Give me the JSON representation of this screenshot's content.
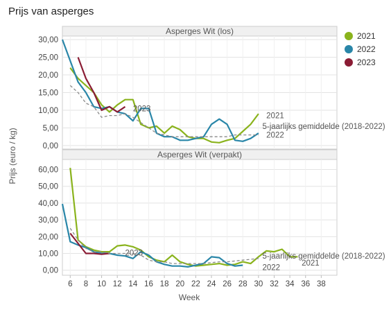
{
  "title": "Prijs van asperges",
  "legend": [
    {
      "name": "2021",
      "color": "#8ab31c"
    },
    {
      "name": "2022",
      "color": "#2986a8"
    },
    {
      "name": "2023",
      "color": "#8a1c34"
    }
  ],
  "chart_data": {
    "type": "line",
    "xlabel": "Week",
    "ylabel": "Prijs (euro / kg)",
    "x_ticks": [
      "6",
      "8",
      "10",
      "12",
      "14",
      "16",
      "18",
      "20",
      "22",
      "24",
      "26",
      "28",
      "30",
      "32",
      "34",
      "36",
      "38"
    ],
    "xlim": [
      5,
      40
    ],
    "panels": [
      {
        "title": "Asperges Wit (los)",
        "ylim": [
          -1,
          31
        ],
        "y_ticks": [
          "0,00",
          "5,00",
          "10,00",
          "15,00",
          "20,00",
          "25,00",
          "30,00"
        ],
        "y_tick_values": [
          0,
          5,
          10,
          15,
          20,
          25,
          30
        ],
        "series": [
          {
            "name": "2021",
            "color": "#8ab31c",
            "points": [
              [
                6,
                22
              ],
              [
                7,
                19
              ],
              [
                8,
                17
              ],
              [
                9,
                15
              ],
              [
                10,
                11.5
              ],
              [
                11,
                9.5
              ],
              [
                12,
                11.5
              ],
              [
                13,
                13
              ],
              [
                14,
                13
              ],
              [
                15,
                6
              ],
              [
                16,
                5
              ],
              [
                17,
                5.5
              ],
              [
                18,
                3.5
              ],
              [
                19,
                5.5
              ],
              [
                20,
                4.5
              ],
              [
                21,
                2.5
              ],
              [
                22,
                2
              ],
              [
                23,
                2
              ],
              [
                24,
                1
              ],
              [
                25,
                0.8
              ],
              [
                26,
                1.5
              ],
              [
                27,
                2
              ],
              [
                28,
                4
              ],
              [
                29,
                6
              ],
              [
                30,
                9
              ]
            ]
          },
          {
            "name": "2022",
            "color": "#2986a8",
            "points": [
              [
                5,
                30
              ],
              [
                6,
                24
              ],
              [
                7,
                18
              ],
              [
                8,
                15
              ],
              [
                9,
                11
              ],
              [
                10,
                10.5
              ],
              [
                11,
                11
              ],
              [
                12,
                9.5
              ],
              [
                13,
                9
              ],
              [
                14,
                7
              ],
              [
                15,
                10.5
              ],
              [
                16,
                10.5
              ],
              [
                17,
                3.5
              ],
              [
                18,
                2.5
              ],
              [
                19,
                2.5
              ],
              [
                20,
                1.5
              ],
              [
                21,
                1.5
              ],
              [
                22,
                2
              ],
              [
                23,
                2.5
              ],
              [
                24,
                6
              ],
              [
                25,
                7.5
              ],
              [
                26,
                6
              ],
              [
                27,
                1.5
              ],
              [
                28,
                1.2
              ],
              [
                29,
                2
              ],
              [
                30,
                3.5
              ]
            ]
          },
          {
            "name": "2023",
            "color": "#8a1c34",
            "points": [
              [
                7,
                25
              ],
              [
                8,
                19
              ],
              [
                9,
                15
              ],
              [
                10,
                10
              ],
              [
                11,
                11
              ],
              [
                12,
                9.5
              ],
              [
                13,
                11
              ]
            ]
          },
          {
            "name": "5-jaarlijks gemiddelde (2018-2022)",
            "color": "#888888",
            "dashed": true,
            "points": [
              [
                6,
                17
              ],
              [
                7,
                15
              ],
              [
                8,
                12
              ],
              [
                9,
                11
              ],
              [
                10,
                8
              ],
              [
                11,
                8.5
              ],
              [
                12,
                8.5
              ],
              [
                13,
                9
              ],
              [
                14,
                8
              ],
              [
                15,
                6.5
              ],
              [
                16,
                5
              ],
              [
                17,
                3.5
              ],
              [
                18,
                3
              ],
              [
                19,
                2.5
              ],
              [
                20,
                2.5
              ],
              [
                21,
                2.5
              ],
              [
                22,
                2.5
              ],
              [
                23,
                2.5
              ],
              [
                24,
                2.5
              ],
              [
                25,
                2.5
              ],
              [
                26,
                2.5
              ],
              [
                27,
                3
              ],
              [
                28,
                3
              ],
              [
                29,
                3
              ],
              [
                30,
                3
              ]
            ]
          }
        ],
        "labels": [
          {
            "text": "2021",
            "x": 31,
            "y": 8.5
          },
          {
            "text": "5-jaarlijks gemiddelde (2018-2022)",
            "x": 30.5,
            "y": 5.5
          },
          {
            "text": "2022",
            "x": 31,
            "y": 3
          },
          {
            "text": "2023",
            "x": 14,
            "y": 10.5
          }
        ]
      },
      {
        "title": "Asperges Wit (verpakt)",
        "ylim": [
          -3,
          66
        ],
        "y_ticks": [
          "0,00",
          "10,00",
          "20,00",
          "30,00",
          "40,00",
          "50,00",
          "60,00"
        ],
        "y_tick_values": [
          0,
          10,
          20,
          30,
          40,
          50,
          60
        ],
        "series": [
          {
            "name": "2021",
            "color": "#8ab31c",
            "points": [
              [
                6,
                61
              ],
              [
                7,
                18
              ],
              [
                8,
                14
              ],
              [
                9,
                12
              ],
              [
                10,
                11
              ],
              [
                11,
                11
              ],
              [
                12,
                14.5
              ],
              [
                13,
                15
              ],
              [
                14,
                14
              ],
              [
                15,
                12
              ],
              [
                16,
                8
              ],
              [
                17,
                6
              ],
              [
                18,
                5
              ],
              [
                19,
                9
              ],
              [
                20,
                5
              ],
              [
                21,
                3.5
              ],
              [
                22,
                2.5
              ],
              [
                23,
                3
              ],
              [
                24,
                3.5
              ],
              [
                25,
                4
              ],
              [
                26,
                3
              ],
              [
                27,
                3.5
              ],
              [
                28,
                5
              ],
              [
                29,
                4
              ],
              [
                30,
                8
              ],
              [
                31,
                11.5
              ],
              [
                32,
                11
              ],
              [
                33,
                12.5
              ],
              [
                34,
                8
              ],
              [
                35,
                8
              ]
            ]
          },
          {
            "name": "2022",
            "color": "#2986a8",
            "points": [
              [
                5,
                39.5
              ],
              [
                6,
                17
              ],
              [
                7,
                15
              ],
              [
                8,
                13.5
              ],
              [
                9,
                11
              ],
              [
                10,
                10
              ],
              [
                11,
                10
              ],
              [
                12,
                9
              ],
              [
                13,
                8.5
              ],
              [
                14,
                7
              ],
              [
                15,
                11
              ],
              [
                16,
                9
              ],
              [
                17,
                5
              ],
              [
                18,
                3.5
              ],
              [
                19,
                2.5
              ],
              [
                20,
                2.5
              ],
              [
                21,
                2
              ],
              [
                22,
                3
              ],
              [
                23,
                4
              ],
              [
                24,
                8
              ],
              [
                25,
                7.5
              ],
              [
                26,
                4
              ],
              [
                27,
                2.5
              ],
              [
                28,
                3
              ]
            ]
          },
          {
            "name": "2023",
            "color": "#8a1c34",
            "points": [
              [
                6,
                22
              ],
              [
                7,
                16
              ],
              [
                8,
                10
              ],
              [
                9,
                10
              ],
              [
                10,
                9.5
              ],
              [
                11,
                10
              ]
            ]
          },
          {
            "name": "5-jaarlijks gemiddelde (2018-2022)",
            "color": "#888888",
            "dashed": true,
            "points": [
              [
                6,
                25
              ],
              [
                7,
                18
              ],
              [
                8,
                13
              ],
              [
                9,
                11
              ],
              [
                10,
                11
              ],
              [
                11,
                10
              ],
              [
                12,
                10
              ],
              [
                13,
                10
              ],
              [
                14,
                10
              ],
              [
                15,
                9
              ],
              [
                16,
                6
              ],
              [
                17,
                5
              ],
              [
                18,
                5
              ],
              [
                19,
                4
              ],
              [
                20,
                4
              ],
              [
                21,
                4
              ],
              [
                22,
                4
              ],
              [
                23,
                4
              ],
              [
                24,
                4.5
              ],
              [
                25,
                5
              ],
              [
                26,
                5
              ],
              [
                27,
                5.5
              ],
              [
                28,
                6
              ],
              [
                29,
                6.5
              ],
              [
                30,
                7
              ]
            ]
          }
        ],
        "labels": [
          {
            "text": "2023",
            "x": 13,
            "y": 10.5
          },
          {
            "text": "5-jaarlijks gemiddelde (2018-2022)",
            "x": 30.5,
            "y": 8.5
          },
          {
            "text": "2021",
            "x": 35.5,
            "y": 4.5
          },
          {
            "text": "2022",
            "x": 30.5,
            "y": 1.8
          }
        ]
      }
    ]
  }
}
